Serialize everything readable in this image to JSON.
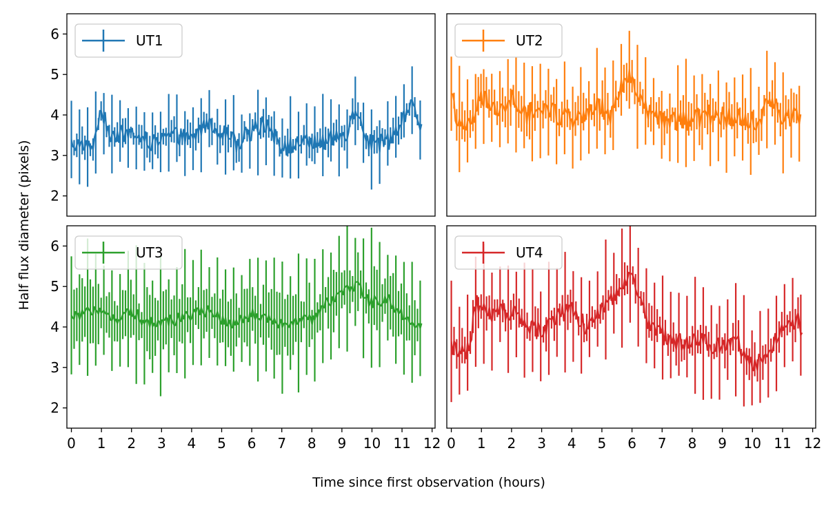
{
  "figure": {
    "xlabel": "Time since first observation (hours)",
    "ylabel": "Half flux diameter (pixels)"
  },
  "chart_data": [
    {
      "type": "line",
      "error_bars": true,
      "series": [
        {
          "name": "UT1",
          "color": "#1f77b4"
        }
      ],
      "ylim": [
        1.5,
        6.5
      ],
      "xlim": [
        -0.15,
        12.1
      ],
      "x_ticks": [
        0,
        1,
        2,
        3,
        4,
        5,
        6,
        7,
        8,
        9,
        10,
        11,
        12
      ],
      "y_ticks": [
        2,
        3,
        4,
        5,
        6
      ],
      "legend": "top-left",
      "profile": [
        [
          0,
          3.3
        ],
        [
          0.7,
          3.15
        ],
        [
          0.85,
          3.8
        ],
        [
          1.05,
          4.0
        ],
        [
          1.3,
          3.5
        ],
        [
          2.0,
          3.55
        ],
        [
          2.7,
          3.3
        ],
        [
          3.4,
          3.5
        ],
        [
          4.0,
          3.4
        ],
        [
          4.5,
          3.8
        ],
        [
          5.0,
          3.6
        ],
        [
          5.5,
          3.3
        ],
        [
          6.0,
          3.6
        ],
        [
          6.5,
          3.8
        ],
        [
          7.0,
          3.2
        ],
        [
          7.6,
          3.3
        ],
        [
          8.5,
          3.35
        ],
        [
          9.2,
          3.6
        ],
        [
          9.5,
          4.2
        ],
        [
          9.9,
          3.3
        ],
        [
          10.5,
          3.3
        ],
        [
          10.8,
          3.6
        ],
        [
          11.3,
          4.2
        ],
        [
          11.65,
          3.7
        ]
      ],
      "noise": 0.22,
      "err_base": 0.45,
      "err_spike": 0.85
    },
    {
      "type": "line",
      "error_bars": true,
      "series": [
        {
          "name": "UT2",
          "color": "#ff7f0e"
        }
      ],
      "ylim": [
        1.5,
        6.5
      ],
      "xlim": [
        -0.15,
        12.1
      ],
      "x_ticks": [
        0,
        1,
        2,
        3,
        4,
        5,
        6,
        7,
        8,
        9,
        10,
        11,
        12
      ],
      "y_ticks": [
        2,
        3,
        4,
        5,
        6
      ],
      "legend": "top-left",
      "profile": [
        [
          0,
          4.4
        ],
        [
          0.3,
          3.7
        ],
        [
          0.7,
          3.8
        ],
        [
          1.0,
          4.5
        ],
        [
          1.5,
          4.1
        ],
        [
          2.0,
          4.4
        ],
        [
          2.5,
          4.0
        ],
        [
          3.0,
          4.2
        ],
        [
          3.5,
          4.0
        ],
        [
          4.0,
          3.9
        ],
        [
          4.5,
          4.1
        ],
        [
          5.0,
          4.2
        ],
        [
          5.3,
          3.9
        ],
        [
          5.6,
          4.6
        ],
        [
          6.0,
          5.0
        ],
        [
          6.3,
          4.3
        ],
        [
          6.7,
          3.9
        ],
        [
          7.5,
          3.8
        ],
        [
          8.5,
          4.0
        ],
        [
          9.5,
          3.9
        ],
        [
          10.2,
          3.8
        ],
        [
          10.6,
          4.4
        ],
        [
          11.0,
          4.0
        ],
        [
          11.6,
          3.9
        ]
      ],
      "noise": 0.25,
      "err_base": 0.6,
      "err_spike": 1.1
    },
    {
      "type": "line",
      "error_bars": true,
      "series": [
        {
          "name": "UT3",
          "color": "#2ca02c"
        }
      ],
      "ylim": [
        1.5,
        6.5
      ],
      "xlim": [
        -0.15,
        12.1
      ],
      "x_ticks": [
        0,
        1,
        2,
        3,
        4,
        5,
        6,
        7,
        8,
        9,
        10,
        11,
        12
      ],
      "y_ticks": [
        2,
        3,
        4,
        5,
        6
      ],
      "legend": "top-left",
      "profile": [
        [
          0,
          4.2
        ],
        [
          0.5,
          4.4
        ],
        [
          1.0,
          4.3
        ],
        [
          1.5,
          4.2
        ],
        [
          2.0,
          4.4
        ],
        [
          2.5,
          4.1
        ],
        [
          3.0,
          4.1
        ],
        [
          3.5,
          4.2
        ],
        [
          4.0,
          4.3
        ],
        [
          4.5,
          4.4
        ],
        [
          5.0,
          4.2
        ],
        [
          5.5,
          4.1
        ],
        [
          6.0,
          4.3
        ],
        [
          6.5,
          4.2
        ],
        [
          7.0,
          4.1
        ],
        [
          7.5,
          4.1
        ],
        [
          8.0,
          4.2
        ],
        [
          8.5,
          4.6
        ],
        [
          9.0,
          4.8
        ],
        [
          9.5,
          5.1
        ],
        [
          9.9,
          4.6
        ],
        [
          10.5,
          4.7
        ],
        [
          11.0,
          4.3
        ],
        [
          11.65,
          4.0
        ]
      ],
      "noise": 0.15,
      "err_base": 1.0,
      "err_spike": 1.4
    },
    {
      "type": "line",
      "error_bars": true,
      "series": [
        {
          "name": "UT4",
          "color": "#d62728"
        }
      ],
      "ylim": [
        1.5,
        6.5
      ],
      "xlim": [
        -0.15,
        12.1
      ],
      "x_ticks": [
        0,
        1,
        2,
        3,
        4,
        5,
        6,
        7,
        8,
        9,
        10,
        11,
        12
      ],
      "y_ticks": [
        2,
        3,
        4,
        5,
        6
      ],
      "legend": "top-left",
      "profile": [
        [
          0,
          3.5
        ],
        [
          0.6,
          3.4
        ],
        [
          0.8,
          4.6
        ],
        [
          1.3,
          4.3
        ],
        [
          2.0,
          4.4
        ],
        [
          2.5,
          4.0
        ],
        [
          3.0,
          3.9
        ],
        [
          3.5,
          4.3
        ],
        [
          4.0,
          4.4
        ],
        [
          4.5,
          4.0
        ],
        [
          5.0,
          4.4
        ],
        [
          5.5,
          4.9
        ],
        [
          6.0,
          5.3
        ],
        [
          6.5,
          4.2
        ],
        [
          7.0,
          3.8
        ],
        [
          7.5,
          3.6
        ],
        [
          8.0,
          3.7
        ],
        [
          8.5,
          3.6
        ],
        [
          9.0,
          3.5
        ],
        [
          9.5,
          3.6
        ],
        [
          10.0,
          3.1
        ],
        [
          10.4,
          3.2
        ],
        [
          11.0,
          4.0
        ],
        [
          11.5,
          4.2
        ],
        [
          11.65,
          3.7
        ]
      ],
      "noise": 0.22,
      "err_base": 0.55,
      "err_spike": 1.2
    }
  ]
}
